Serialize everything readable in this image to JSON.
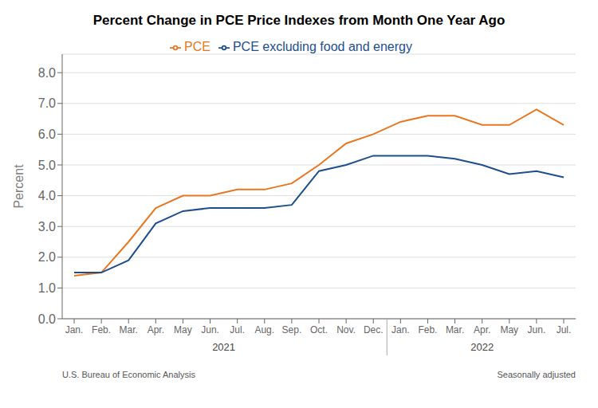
{
  "chart_data": {
    "type": "line",
    "title": "Percent Change in PCE Price Indexes from Month One Year Ago",
    "ylabel": "Percent",
    "categories": [
      "Jan.",
      "Feb.",
      "Mar.",
      "Apr.",
      "May",
      "Jun.",
      "Jul.",
      "Aug.",
      "Sep.",
      "Oct.",
      "Nov.",
      "Dec.",
      "Jan.",
      "Feb.",
      "Mar.",
      "Apr.",
      "May",
      "Jun.",
      "Jul."
    ],
    "group_labels": [
      "2021",
      "2022"
    ],
    "annotations": [
      "U.S. Bureau of Economic Analysis",
      "Seasonally adjusted"
    ],
    "series": [
      {
        "name": "PCE",
        "color": "#E87722",
        "values": [
          1.4,
          1.5,
          2.5,
          3.6,
          4.0,
          4.0,
          4.2,
          4.2,
          4.4,
          5.0,
          5.7,
          6.0,
          6.4,
          6.6,
          6.6,
          6.3,
          6.3,
          6.8,
          6.3
        ]
      },
      {
        "name": "PCE excluding food and energy",
        "color": "#1F4E8C",
        "values": [
          1.5,
          1.5,
          1.9,
          3.1,
          3.5,
          3.6,
          3.6,
          3.6,
          3.7,
          4.8,
          5.0,
          5.3,
          5.3,
          5.3,
          5.2,
          5.0,
          4.7,
          4.8,
          4.6
        ]
      }
    ],
    "ylim": [
      0.0,
      8.6
    ],
    "yticks": [
      {
        "value": 0.0,
        "label": "0.0"
      },
      {
        "value": 1.0,
        "label": "1.0"
      },
      {
        "value": 2.0,
        "label": "2.0"
      },
      {
        "value": 3.0,
        "label": "3.0"
      },
      {
        "value": 4.0,
        "label": "4.0"
      },
      {
        "value": 5.0,
        "label": "5.0"
      },
      {
        "value": 6.0,
        "label": "6.0"
      },
      {
        "value": 7.0,
        "label": "7.0"
      },
      {
        "value": 8.0,
        "label": "8.0"
      }
    ],
    "grid": true,
    "legend": "top"
  }
}
